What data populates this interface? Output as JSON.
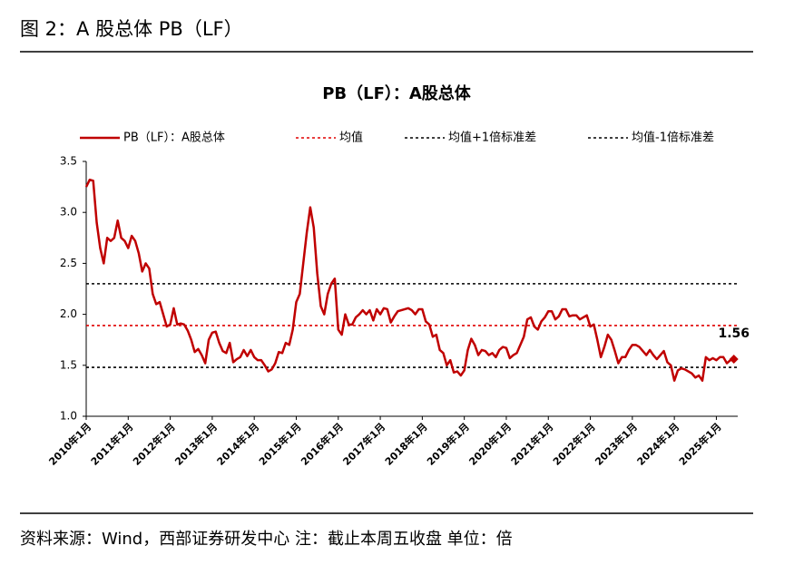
{
  "header": {
    "title": "图 2：A 股总体 PB（LF）"
  },
  "footer": {
    "source": "资料来源：Wind，西部证券研发中心 注：截止本周五收盘 单位：倍"
  },
  "chart_data": {
    "type": "line",
    "title": "PB（LF）：A股总体",
    "categories": [
      "2010年1月",
      null,
      null,
      null,
      null,
      null,
      null,
      null,
      null,
      null,
      null,
      null,
      "2011年1月",
      null,
      null,
      null,
      null,
      null,
      null,
      null,
      null,
      null,
      null,
      null,
      "2012年1月",
      null,
      null,
      null,
      null,
      null,
      null,
      null,
      null,
      null,
      null,
      null,
      "2013年1月",
      null,
      null,
      null,
      null,
      null,
      null,
      null,
      null,
      null,
      null,
      null,
      "2014年1月",
      null,
      null,
      null,
      null,
      null,
      null,
      null,
      null,
      null,
      null,
      null,
      "2015年1月",
      null,
      null,
      null,
      null,
      null,
      null,
      null,
      null,
      null,
      null,
      null,
      "2016年1月",
      null,
      null,
      null,
      null,
      null,
      null,
      null,
      null,
      null,
      null,
      null,
      "2017年1月",
      null,
      null,
      null,
      null,
      null,
      null,
      null,
      null,
      null,
      null,
      null,
      "2018年1月",
      null,
      null,
      null,
      null,
      null,
      null,
      null,
      null,
      null,
      null,
      null,
      "2019年1月",
      null,
      null,
      null,
      null,
      null,
      null,
      null,
      null,
      null,
      null,
      null,
      "2020年1月",
      null,
      null,
      null,
      null,
      null,
      null,
      null,
      null,
      null,
      null,
      null,
      "2021年1月",
      null,
      null,
      null,
      null,
      null,
      null,
      null,
      null,
      null,
      null,
      null,
      "2022年1月",
      null,
      null,
      null,
      null,
      null,
      null,
      null,
      null,
      null,
      null,
      null,
      "2023年1月",
      null,
      null,
      null,
      null,
      null,
      null,
      null,
      null,
      null,
      null,
      null,
      "2024年1月",
      null,
      null,
      null,
      null,
      null,
      null,
      null,
      null,
      null,
      null,
      null,
      "2025年1月",
      null,
      null,
      null,
      null,
      null
    ],
    "series": [
      {
        "name": "PB（LF）：A股总体",
        "color": "#c00000",
        "values": [
          3.25,
          3.32,
          3.31,
          2.9,
          2.65,
          2.5,
          2.75,
          2.72,
          2.75,
          2.92,
          2.75,
          2.72,
          2.65,
          2.77,
          2.72,
          2.6,
          2.42,
          2.5,
          2.45,
          2.2,
          2.1,
          2.12,
          2.0,
          1.88,
          1.9,
          2.06,
          1.9,
          1.91,
          1.9,
          1.84,
          1.75,
          1.63,
          1.66,
          1.6,
          1.52,
          1.75,
          1.82,
          1.83,
          1.72,
          1.64,
          1.62,
          1.72,
          1.53,
          1.56,
          1.58,
          1.65,
          1.59,
          1.65,
          1.58,
          1.55,
          1.55,
          1.5,
          1.44,
          1.46,
          1.52,
          1.63,
          1.62,
          1.72,
          1.7,
          1.85,
          2.12,
          2.2,
          2.5,
          2.8,
          3.05,
          2.85,
          2.4,
          2.08,
          2.0,
          2.2,
          2.3,
          2.35,
          1.85,
          1.8,
          2.0,
          1.9,
          1.9,
          1.97,
          2.0,
          2.04,
          2.0,
          2.04,
          1.94,
          2.05,
          2.0,
          2.06,
          2.05,
          1.92,
          1.98,
          2.03,
          2.04,
          2.05,
          2.06,
          2.04,
          2.0,
          2.05,
          2.05,
          1.93,
          1.9,
          1.78,
          1.8,
          1.65,
          1.62,
          1.5,
          1.55,
          1.43,
          1.44,
          1.4,
          1.45,
          1.65,
          1.76,
          1.7,
          1.6,
          1.65,
          1.64,
          1.6,
          1.62,
          1.58,
          1.65,
          1.68,
          1.67,
          1.57,
          1.6,
          1.62,
          1.7,
          1.78,
          1.95,
          1.97,
          1.88,
          1.85,
          1.93,
          1.97,
          2.03,
          2.03,
          1.95,
          1.98,
          2.05,
          2.05,
          1.98,
          1.99,
          1.99,
          1.95,
          1.97,
          1.99,
          1.88,
          1.9,
          1.75,
          1.58,
          1.68,
          1.8,
          1.75,
          1.64,
          1.52,
          1.58,
          1.58,
          1.65,
          1.7,
          1.7,
          1.68,
          1.64,
          1.6,
          1.65,
          1.6,
          1.56,
          1.6,
          1.64,
          1.53,
          1.5,
          1.35,
          1.45,
          1.47,
          1.46,
          1.44,
          1.42,
          1.38,
          1.4,
          1.35,
          1.58,
          1.55,
          1.57,
          1.55,
          1.58,
          1.58,
          1.52,
          1.55,
          1.56
        ]
      }
    ],
    "reference_lines": [
      {
        "name": "均值",
        "value": 1.89,
        "color": "#e00000"
      },
      {
        "name": "均值+1倍标准差",
        "value": 2.3,
        "color": "#000000"
      },
      {
        "name": "均值-1倍标准差",
        "value": 1.48,
        "color": "#000000"
      }
    ],
    "ylim": [
      1.0,
      3.5
    ],
    "yticks": [
      {
        "value": 1.0,
        "label": "1.0"
      },
      1.5,
      {
        "value": 2.0,
        "label": "2.0"
      },
      2.5,
      {
        "value": 3.0,
        "label": "3.0"
      },
      3.5
    ],
    "grid": false,
    "legend": "top"
  }
}
